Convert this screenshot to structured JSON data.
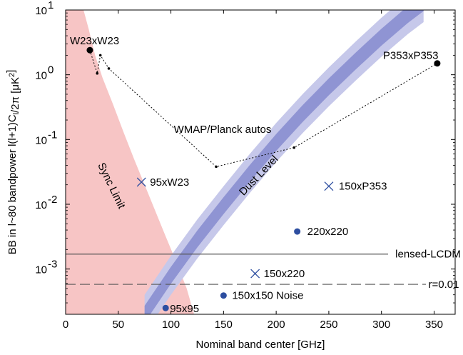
{
  "chart_data": {
    "type": "scatter",
    "xlabel": "Nominal band center [GHz]",
    "ylabel": "BB in l~80 bandpower l(l+1)C_l/2π [μK²]",
    "xlim": [
      0,
      370
    ],
    "ylim": [
      0.0002,
      10
    ],
    "yscale": "log",
    "x_ticks": [
      "0",
      "50",
      "100",
      "150",
      "200",
      "250",
      "300",
      "350"
    ],
    "y_ticks": [
      {
        "value": 10,
        "label": "10",
        "exp": "1"
      },
      {
        "value": 1,
        "label": "10",
        "exp": "0"
      },
      {
        "value": 0.1,
        "label": "10",
        "exp": "-1"
      },
      {
        "value": 0.01,
        "label": "10",
        "exp": "-2"
      },
      {
        "value": 0.001,
        "label": "10",
        "exp": "-3"
      }
    ],
    "colors": {
      "sync_band": "#f7c5c5",
      "dust_outer": "#c6c8ea",
      "dust_inner": "#8f94d3",
      "marker_blue": "#2d4ea0",
      "black": "#000000"
    },
    "sync_band": {
      "label": "Sync Limit",
      "upper": [
        [
          17,
          10
        ],
        [
          22,
          5
        ],
        [
          28,
          2
        ],
        [
          35,
          0.9
        ],
        [
          45,
          0.35
        ],
        [
          55,
          0.13
        ],
        [
          65,
          0.05
        ],
        [
          75,
          0.02
        ],
        [
          85,
          0.008
        ],
        [
          95,
          0.0032
        ],
        [
          105,
          0.0013
        ],
        [
          115,
          0.0005
        ],
        [
          122,
          0.0002
        ]
      ],
      "lower": [
        [
          0,
          10
        ],
        [
          0,
          0.0002
        ]
      ]
    },
    "dust_band": {
      "label": "Dust Level",
      "center": [
        [
          75,
          0.0002
        ],
        [
          100,
          0.0008
        ],
        [
          125,
          0.0029
        ],
        [
          150,
          0.0095
        ],
        [
          175,
          0.03
        ],
        [
          200,
          0.09
        ],
        [
          225,
          0.25
        ],
        [
          250,
          0.65
        ],
        [
          275,
          1.6
        ],
        [
          300,
          3.8
        ],
        [
          325,
          8.5
        ],
        [
          340,
          13
        ]
      ],
      "outer_factor": 2.0,
      "inner_factor": 1.35
    },
    "wmap_planck_autos": {
      "label": "WMAP/Planck autos",
      "points": [
        [
          23,
          2.4
        ],
        [
          30,
          1.05
        ],
        [
          33,
          2.0
        ],
        [
          41,
          1.25
        ],
        [
          143,
          0.038
        ],
        [
          217,
          0.075
        ],
        [
          353,
          1.5
        ]
      ]
    },
    "labeled_points": [
      {
        "name": "W23xW23",
        "x": 23,
        "y": 2.4,
        "marker": "dot",
        "color": "black"
      },
      {
        "name": "P353xP353",
        "x": 353,
        "y": 1.5,
        "marker": "dot",
        "color": "black"
      },
      {
        "name": "95xW23",
        "x": 72,
        "y": 0.022,
        "marker": "x",
        "color": "blue"
      },
      {
        "name": "150xP353",
        "x": 250,
        "y": 0.019,
        "marker": "x",
        "color": "blue"
      },
      {
        "name": "220x220",
        "x": 220,
        "y": 0.0038,
        "marker": "dot",
        "color": "blue"
      },
      {
        "name": "150x220",
        "x": 180,
        "y": 0.00085,
        "marker": "x",
        "color": "blue"
      },
      {
        "name": "150x150 Noise",
        "x": 150,
        "y": 0.00039,
        "marker": "dot",
        "color": "blue"
      },
      {
        "name": "95x95",
        "x": 95,
        "y": 0.00025,
        "marker": "dot",
        "color": "blue"
      }
    ],
    "reference_lines": [
      {
        "name": "lensed-LCDM",
        "y": 0.0017,
        "style": "solid"
      },
      {
        "name": "r=0.01",
        "y": 0.00058,
        "style": "dashed"
      }
    ],
    "grid": false
  }
}
